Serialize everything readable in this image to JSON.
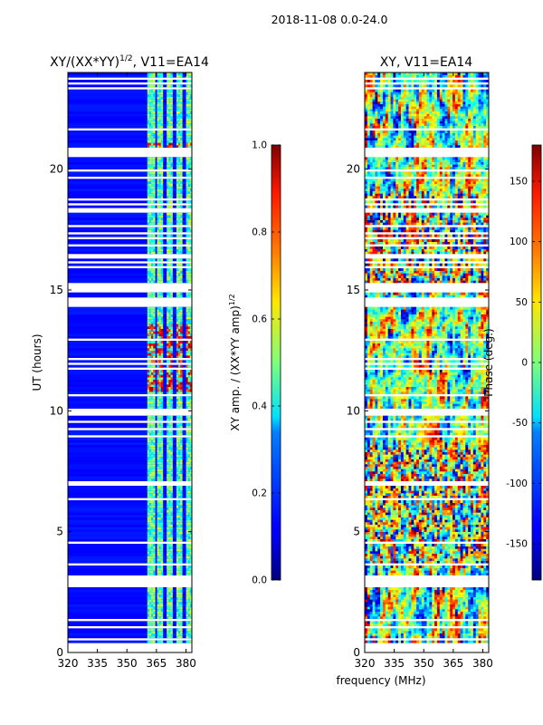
{
  "suptitle": "2018-11-08 0.0-24.0",
  "xlabel_shared": "frequency (MHz)",
  "colors": {
    "frame": "#000000",
    "gap": "#ffffff"
  },
  "chart_data": [
    {
      "type": "heatmap",
      "title": "XY/(XX*YY)^1/2, V11=EA14",
      "title_main": "XY/(XX*YY)",
      "title_exp": "1/2",
      "title_tail": ", V11=EA14",
      "ylabel": "UT (hours)",
      "xlim": [
        320,
        383
      ],
      "ylim": [
        0,
        24
      ],
      "xticks": [
        320,
        335,
        350,
        365,
        380
      ],
      "yticks": [
        0,
        5,
        10,
        15,
        20
      ],
      "colorbar": {
        "label": "XY amp. / (XX*YY amp)^1/2",
        "label_main": "XY amp. / (XX*YY amp)",
        "label_exp": "1/2",
        "range": [
          0.0,
          1.0
        ],
        "ticks": [
          "0.0",
          "0.2",
          "0.4",
          "0.6",
          "0.8",
          "1.0"
        ],
        "tick_values": [
          0.0,
          0.2,
          0.4,
          0.6,
          0.8,
          1.0
        ],
        "colormap": "jet"
      },
      "bright_bands_mhz": [
        [
          360,
          364
        ],
        [
          365,
          368
        ],
        [
          370,
          373
        ],
        [
          375,
          378
        ],
        [
          380,
          383
        ]
      ],
      "high_amplitude_hours": [
        [
          10.8,
          13.6
        ],
        [
          20.8,
          21.1
        ]
      ]
    },
    {
      "type": "heatmap",
      "title": "XY, V11=EA14",
      "xlim": [
        320,
        383
      ],
      "ylim": [
        0,
        24
      ],
      "xticks": [
        320,
        335,
        350,
        365,
        380
      ],
      "yticks": [
        0,
        5,
        10,
        15,
        20
      ],
      "colorbar": {
        "label": "Phase (deg.)",
        "range": [
          -180,
          180
        ],
        "ticks": [
          "-150",
          "-100",
          "-50",
          "0",
          "50",
          "100",
          "150"
        ],
        "tick_values": [
          -150,
          -100,
          -50,
          0,
          50,
          100,
          150
        ],
        "colormap": "jet"
      }
    }
  ]
}
